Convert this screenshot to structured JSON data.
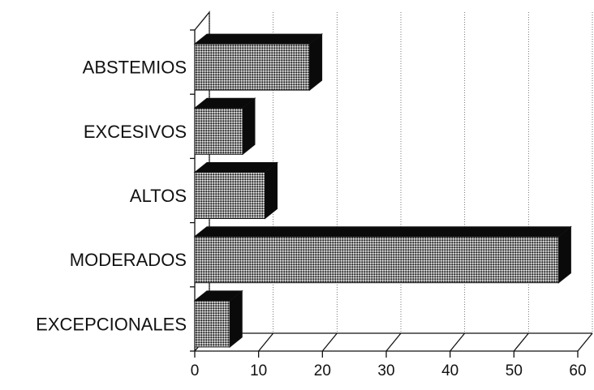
{
  "chart_data": {
    "type": "bar",
    "orientation": "horizontal",
    "style": "3d",
    "categories": [
      "ABSTEMIOS",
      "EXCESIVOS",
      "ALTOS",
      "MODERADOS",
      "EXCEPCIONALES"
    ],
    "values": [
      18,
      7.5,
      11,
      57,
      5.5
    ],
    "xlabel": "",
    "ylabel": "",
    "xlim": [
      0,
      60
    ],
    "xticks": [
      "0",
      "10",
      "20",
      "30",
      "40",
      "50",
      "60"
    ],
    "grid": true,
    "legend": "none",
    "colors": {
      "bar_pattern": "#9a9a9a",
      "bar_dark": "#0a0a0a"
    }
  }
}
